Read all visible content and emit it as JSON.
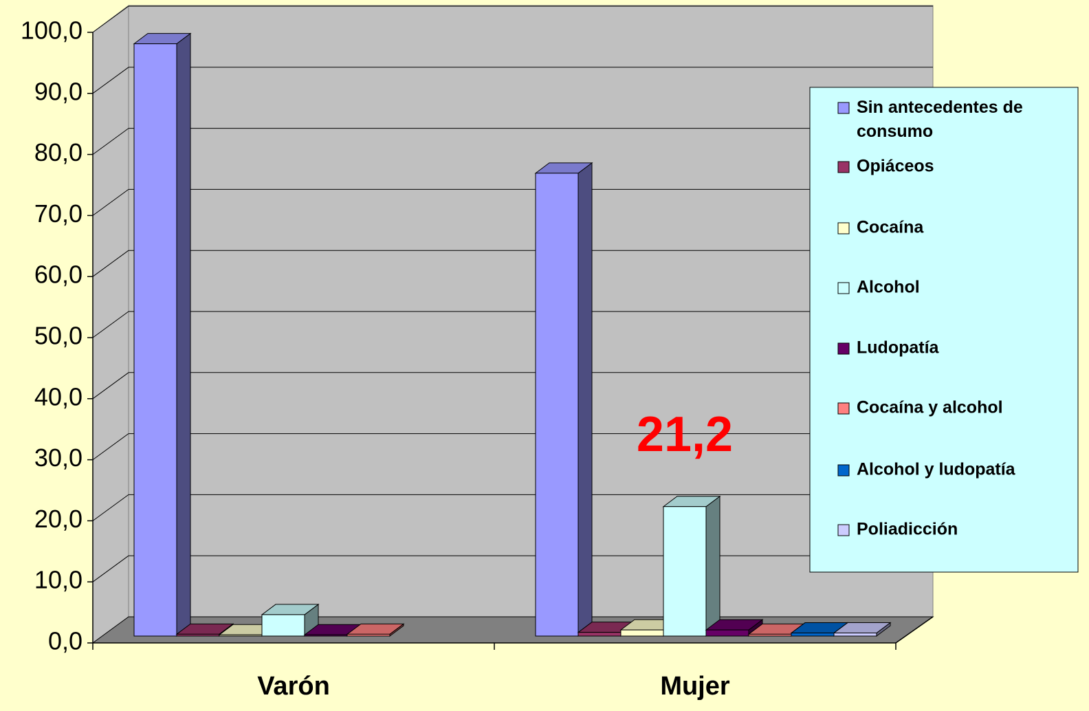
{
  "chart_data": {
    "type": "bar3d",
    "categories": [
      "Varón",
      "Mujer"
    ],
    "series": [
      {
        "name": "Sin antecedentes de consumo",
        "color": "#9999ff",
        "values": [
          97.0,
          75.8
        ]
      },
      {
        "name": "Opiáceos",
        "color": "#993366",
        "values": [
          0.3,
          0.6
        ]
      },
      {
        "name": "Cocaína",
        "color": "#ffffcc",
        "values": [
          0.2,
          1.0
        ]
      },
      {
        "name": "Alcohol",
        "color": "#ccffff",
        "values": [
          3.5,
          21.2
        ],
        "value_labels": [
          null,
          "21,2"
        ]
      },
      {
        "name": "Ludopatía",
        "color": "#660066",
        "values": [
          0.2,
          1.0
        ]
      },
      {
        "name": "Cocaína y alcohol",
        "color": "#ff8080",
        "values": [
          0.3,
          0.3
        ]
      },
      {
        "name": "Alcohol y ludopatía",
        "color": "#0066cc",
        "values": [
          null,
          0.5
        ]
      },
      {
        "name": "Poliadicción",
        "color": "#ccccff",
        "values": [
          null,
          0.5
        ]
      }
    ],
    "ylim": [
      0,
      100
    ],
    "yticks": [
      {
        "value": 0,
        "label": "0,0"
      },
      {
        "value": 10,
        "label": "10,0"
      },
      {
        "value": 20,
        "label": "20,0"
      },
      {
        "value": 30,
        "label": "30,0"
      },
      {
        "value": 40,
        "label": "40,0"
      },
      {
        "value": 50,
        "label": "50,0"
      },
      {
        "value": 60,
        "label": "60,0"
      },
      {
        "value": 70,
        "label": "70,0"
      },
      {
        "value": 80,
        "label": "80,0"
      },
      {
        "value": 90,
        "label": "90,0"
      },
      {
        "value": 100,
        "label": "100,0"
      }
    ],
    "grid": true,
    "legend": "right"
  }
}
